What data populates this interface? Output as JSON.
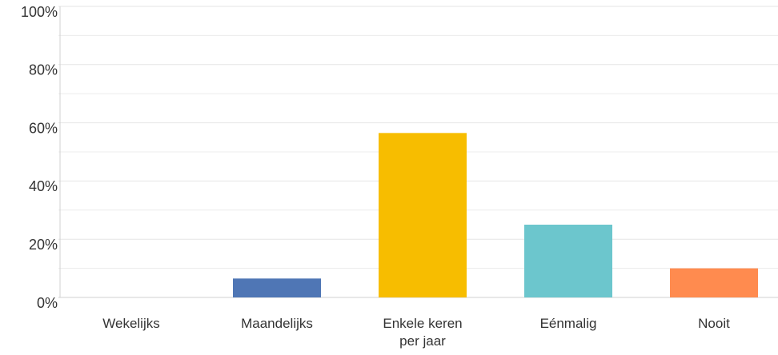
{
  "chart_data": {
    "type": "bar",
    "categories": [
      "Wekelijks",
      "Maandelijks",
      "Enkele keren per jaar",
      "Eénmalig",
      "Nooit"
    ],
    "values": [
      0,
      6.5,
      56.5,
      25,
      10
    ],
    "colors": [
      "#7fbf3f",
      "#4f76b5",
      "#f7bd00",
      "#6cc6cd",
      "#ff8b4f"
    ],
    "ylim": [
      0,
      100
    ],
    "yticks": [
      {
        "value": 0,
        "label": "0%"
      },
      {
        "value": 20,
        "label": "20%"
      },
      {
        "value": 40,
        "label": "40%"
      },
      {
        "value": 60,
        "label": "60%"
      },
      {
        "value": 80,
        "label": "80%"
      },
      {
        "value": 100,
        "label": "100%"
      }
    ],
    "minor_yticks": [
      10,
      30,
      50,
      70,
      90
    ],
    "grid": true
  }
}
